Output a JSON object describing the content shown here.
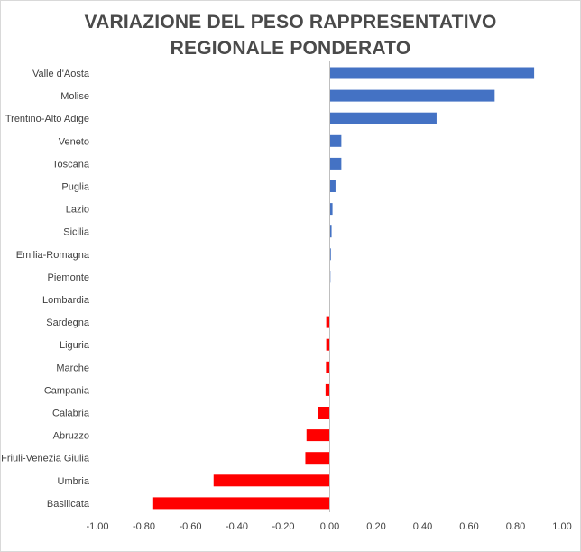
{
  "chart_data": {
    "type": "bar",
    "orientation": "horizontal",
    "title_lines": [
      "VARIAZIONE DEL PESO RAPPRESENTATIVO",
      "REGIONALE PONDERATO"
    ],
    "categories": [
      "Valle d'Aosta",
      "Molise",
      "Trentino-Alto Adige",
      "Veneto",
      "Toscana",
      "Puglia",
      "Lazio",
      "Sicilia",
      "Emilia-Romagna",
      "Piemonte",
      "Lombardia",
      "Sardegna",
      "Liguria",
      "Marche",
      "Campania",
      "Calabria",
      "Abruzzo",
      "Friuli-Venezia Giulia",
      "Umbria",
      "Basilicata"
    ],
    "values": [
      0.88,
      0.71,
      0.46,
      0.05,
      0.05,
      0.025,
      0.012,
      0.008,
      0.005,
      0.003,
      0.0,
      -0.015,
      -0.015,
      -0.016,
      -0.018,
      -0.05,
      -0.1,
      -0.105,
      -0.5,
      -0.76
    ],
    "xlim": [
      -1.0,
      1.0
    ],
    "xticks": [
      "-1.00",
      "-0.80",
      "-0.60",
      "-0.40",
      "-0.20",
      "0.00",
      "0.20",
      "0.40",
      "0.60",
      "0.80",
      "1.00"
    ],
    "xtick_values": [
      -1.0,
      -0.8,
      -0.6,
      -0.4,
      -0.2,
      0.0,
      0.2,
      0.4,
      0.6,
      0.8,
      1.0
    ],
    "colors": {
      "positive": "#4472c4",
      "negative": "#ff0000"
    },
    "grid": false,
    "legend": "none"
  }
}
